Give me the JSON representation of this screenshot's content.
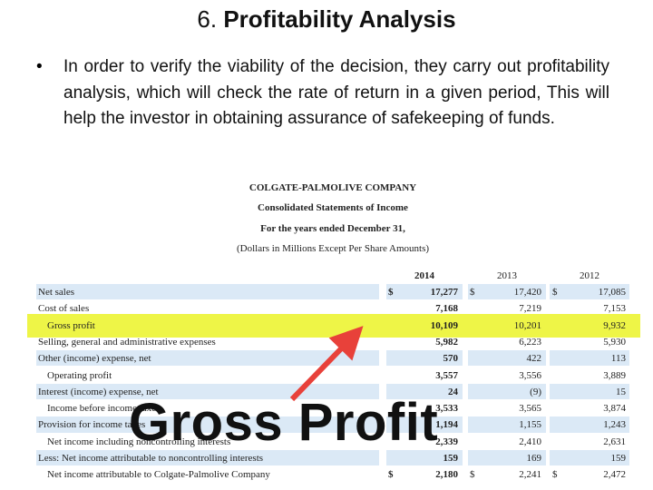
{
  "title": {
    "number": "6.",
    "text": "Profitability Analysis"
  },
  "bullet": "In order to verify the viability of the decision, they carry out profitability analysis, which will check the rate of return in a given period, This will help the investor in obtaining assurance of safekeeping of funds.",
  "statement": {
    "company": "COLGATE-PALMOLIVE COMPANY",
    "heading": "Consolidated Statements of Income",
    "period": "For the years ended December 31,",
    "units": "(Dollars in Millions Except Per Share Amounts)",
    "currency": "$",
    "columns": [
      "2014",
      "2013",
      "2012"
    ],
    "rows": [
      {
        "label": "Net sales",
        "values": [
          "17,277",
          "17,420",
          "17,085"
        ],
        "dollar": true
      },
      {
        "label": "Cost of sales",
        "values": [
          "7,168",
          "7,219",
          "7,153"
        ]
      },
      {
        "label": "Gross profit",
        "values": [
          "10,109",
          "10,201",
          "9,932"
        ],
        "indent": true,
        "highlight": true
      },
      {
        "label": "Selling, general and administrative expenses",
        "values": [
          "5,982",
          "6,223",
          "5,930"
        ]
      },
      {
        "label": "Other (income) expense, net",
        "values": [
          "570",
          "422",
          "113"
        ]
      },
      {
        "label": "Operating profit",
        "values": [
          "3,557",
          "3,556",
          "3,889"
        ],
        "indent": true
      },
      {
        "label": "Interest (income) expense, net",
        "values": [
          "24",
          "(9)",
          "15"
        ]
      },
      {
        "label": "Income before income taxes",
        "values": [
          "3,533",
          "3,565",
          "3,874"
        ],
        "indent": true
      },
      {
        "label": "Provision for income taxes",
        "values": [
          "1,194",
          "1,155",
          "1,243"
        ]
      },
      {
        "label": "Net income including noncontrolling interests",
        "values": [
          "2,339",
          "2,410",
          "2,631"
        ],
        "indent": true
      },
      {
        "label": "Less: Net income attributable to noncontrolling interests",
        "values": [
          "159",
          "169",
          "159"
        ]
      },
      {
        "label": "Net income attributable to Colgate-Palmolive Company",
        "values": [
          "2,180",
          "2,241",
          "2,472"
        ],
        "indent": true,
        "dollar": true
      }
    ]
  },
  "callout": "Gross Profit"
}
